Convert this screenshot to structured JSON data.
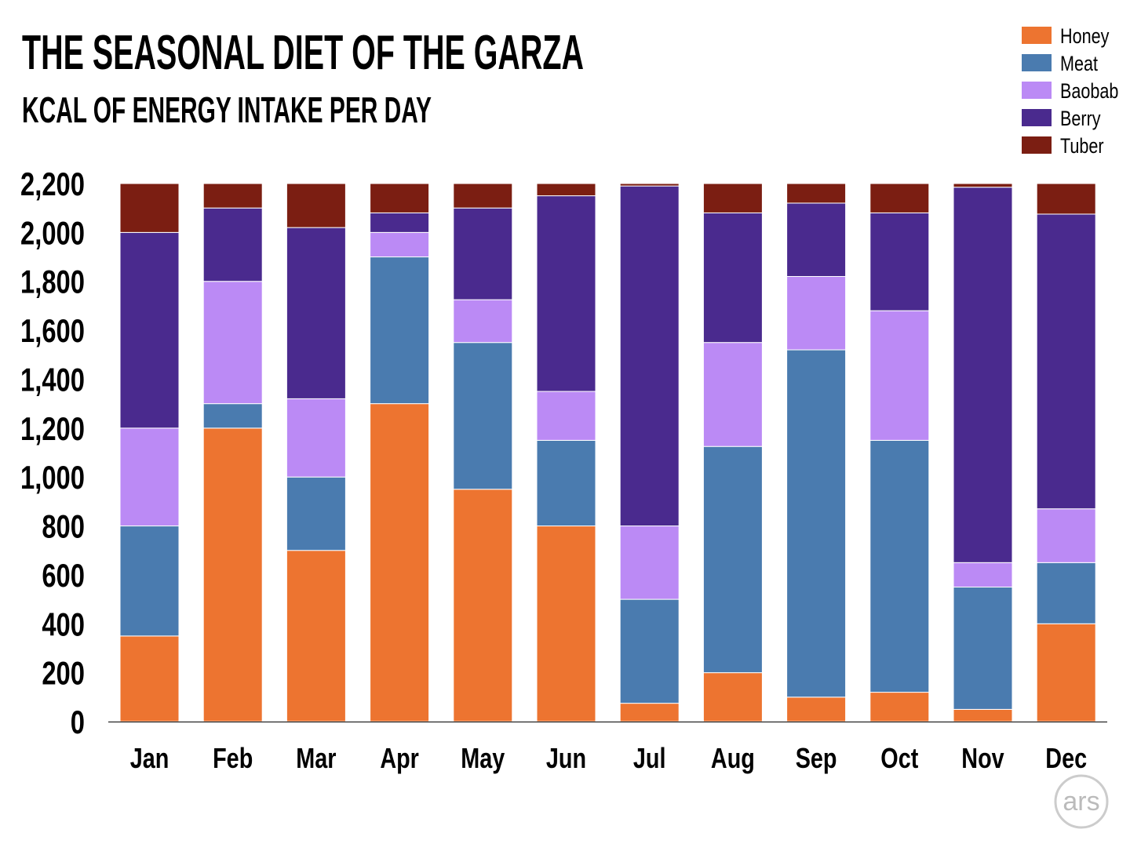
{
  "chart_data": {
    "type": "bar",
    "stacked": true,
    "title": "THE SEASONAL DIET OF THE GARZA",
    "subtitle": "KCAL OF ENERGY INTAKE PER DAY",
    "xlabel": "",
    "ylabel": "",
    "ylim": [
      0,
      2200
    ],
    "yticks": [
      "0",
      "200",
      "400",
      "600",
      "800",
      "1,000",
      "1,200",
      "1,400",
      "1,600",
      "1,800",
      "2,000",
      "2,200"
    ],
    "grid": false,
    "legend_position": "top-right",
    "categories": [
      "Jan",
      "Feb",
      "Mar",
      "Apr",
      "May",
      "Jun",
      "Jul",
      "Aug",
      "Sep",
      "Oct",
      "Nov",
      "Dec"
    ],
    "series": [
      {
        "name": "Honey",
        "color": "#ED7430",
        "values": [
          350,
          1200,
          700,
          1300,
          950,
          800,
          75,
          200,
          100,
          120,
          50,
          400
        ]
      },
      {
        "name": "Meat",
        "color": "#4A7BAF",
        "values": [
          450,
          100,
          300,
          600,
          600,
          350,
          425,
          925,
          1420,
          1030,
          500,
          250
        ]
      },
      {
        "name": "Baobab",
        "color": "#BB8AF5",
        "values": [
          400,
          500,
          320,
          100,
          175,
          200,
          300,
          425,
          300,
          530,
          100,
          220
        ]
      },
      {
        "name": "Berry",
        "color": "#4A2A8E",
        "values": [
          800,
          300,
          700,
          80,
          375,
          800,
          1390,
          530,
          300,
          400,
          1535,
          1205
        ]
      },
      {
        "name": "Tuber",
        "color": "#7B1E12",
        "values": [
          200,
          100,
          180,
          120,
          100,
          50,
          10,
          120,
          80,
          120,
          15,
          125
        ]
      }
    ]
  },
  "logo": {
    "text": "ars"
  }
}
